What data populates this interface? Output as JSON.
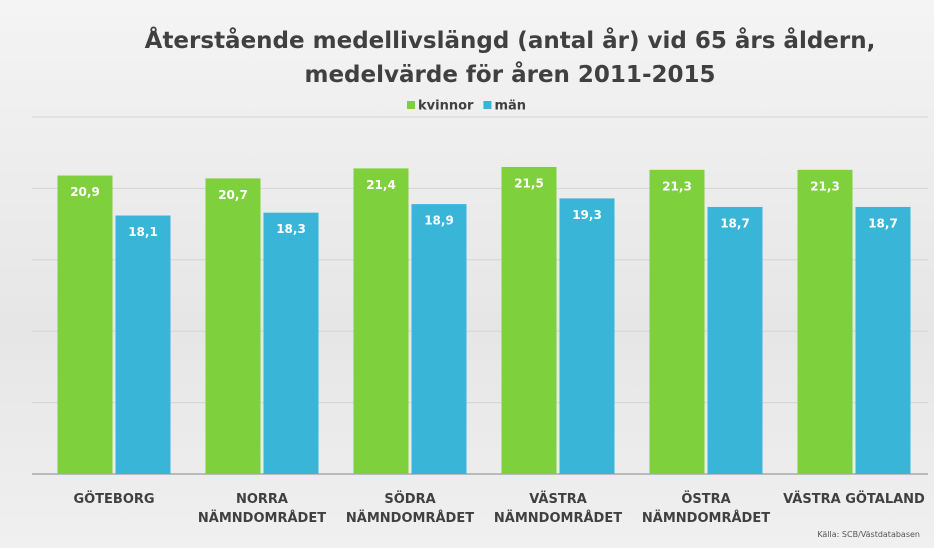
{
  "chart_data": {
    "type": "bar",
    "title": "Återstående medellivslängd (antal år) vid 65 års åldern,\nmedelvärde för åren 2011-2015",
    "categories": [
      "GÖTEBORG",
      "NORRA\nNÄMNDOMRÅDET",
      "SÖDRA\nNÄMNDOMRÅDET",
      "VÄSTRA\nNÄMNDOMRÅDET",
      "ÖSTRA\nNÄMNDOMRÅDET",
      "VÄSTRA GÖTALAND"
    ],
    "series": [
      {
        "name": "kvinnor",
        "color": "#7ed13c",
        "values": [
          20.9,
          20.7,
          21.4,
          21.5,
          21.3,
          21.3
        ],
        "value_labels": [
          "20,9",
          "20,7",
          "21,4",
          "21,5",
          "21,3",
          "21,3"
        ]
      },
      {
        "name": "män",
        "color": "#39b5d8",
        "values": [
          18.1,
          18.3,
          18.9,
          19.3,
          18.7,
          18.7
        ],
        "value_labels": [
          "18,1",
          "18,3",
          "18,9",
          "19,3",
          "18,7",
          "18,7"
        ]
      }
    ],
    "ylim": [
      0,
      25
    ],
    "yticks": [
      0,
      5,
      10,
      15,
      20,
      25
    ],
    "grid": true,
    "legend": "top",
    "source": "Källa: SCB/Västdatabasen"
  }
}
